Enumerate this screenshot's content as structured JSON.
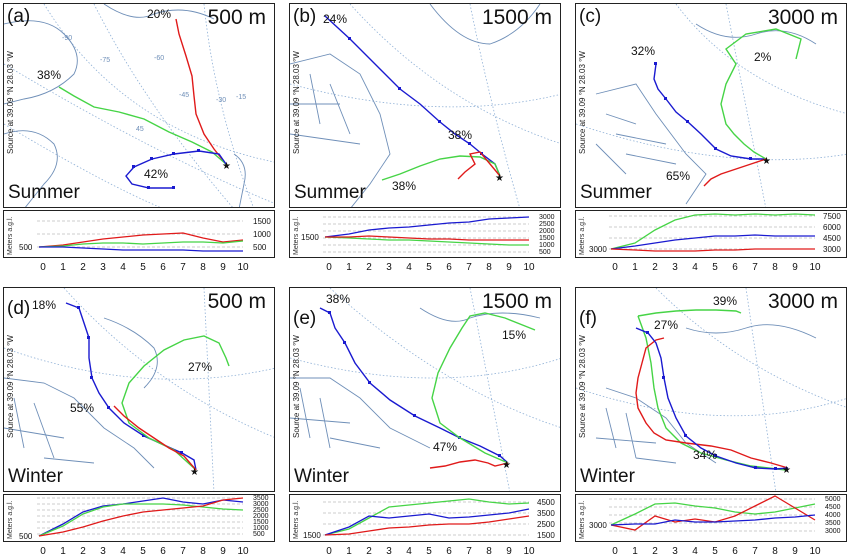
{
  "common": {
    "source_label": "Source   at   39.09 °N  28.03 °W",
    "y_axis_label": "Meters a.g.l.",
    "x_ticks": [
      "0",
      "1",
      "2",
      "3",
      "4",
      "5",
      "6",
      "7",
      "8",
      "9",
      "10"
    ],
    "colors": {
      "blue": "#1a1ad0",
      "green": "#46d446",
      "red": "#e01a1a",
      "map_line": "#6f8fb8",
      "grid": "#8fb0d6"
    }
  },
  "panels": [
    {
      "letter": "(a)",
      "altitude": "500 m",
      "season": "Summer",
      "labels": [
        "20%",
        "38%",
        "42%"
      ],
      "height_ticks": [
        "1500",
        "1000",
        "500"
      ],
      "left_tick": "500"
    },
    {
      "letter": "(b)",
      "altitude": "1500 m",
      "season": "Summer",
      "labels": [
        "24%",
        "38%",
        "38%"
      ],
      "height_ticks": [
        "3000",
        "2500",
        "2000",
        "1500",
        "1000",
        "500"
      ],
      "left_tick": "1500"
    },
    {
      "letter": "(c)",
      "altitude": "3000 m",
      "season": "Summer",
      "labels": [
        "32%",
        "2%",
        "65%"
      ],
      "height_ticks": [
        "7500",
        "6000",
        "4500",
        "3000"
      ],
      "left_tick": "3000"
    },
    {
      "letter": "(d)",
      "altitude": "500 m",
      "season": "Winter",
      "labels": [
        "18%",
        "27%",
        "55%"
      ],
      "height_ticks": [
        "3500",
        "3000",
        "2500",
        "2000",
        "1500",
        "1000",
        "500"
      ],
      "left_tick": "500"
    },
    {
      "letter": "(e)",
      "altitude": "1500 m",
      "season": "Winter",
      "labels": [
        "38%",
        "15%",
        "47%"
      ],
      "height_ticks": [
        "4500",
        "3500",
        "2500",
        "1500"
      ],
      "left_tick": "1500"
    },
    {
      "letter": "(f)",
      "altitude": "3000 m",
      "season": "Winter",
      "labels": [
        "39%",
        "27%",
        "34%"
      ],
      "height_ticks": [
        "5000",
        "4500",
        "4000",
        "3500",
        "3000"
      ],
      "left_tick": "3000"
    }
  ],
  "map_grid_labels": [
    "-90",
    "-75",
    "-60",
    "-45",
    "-30",
    "-15",
    "45",
    "60",
    "30",
    "60"
  ]
}
